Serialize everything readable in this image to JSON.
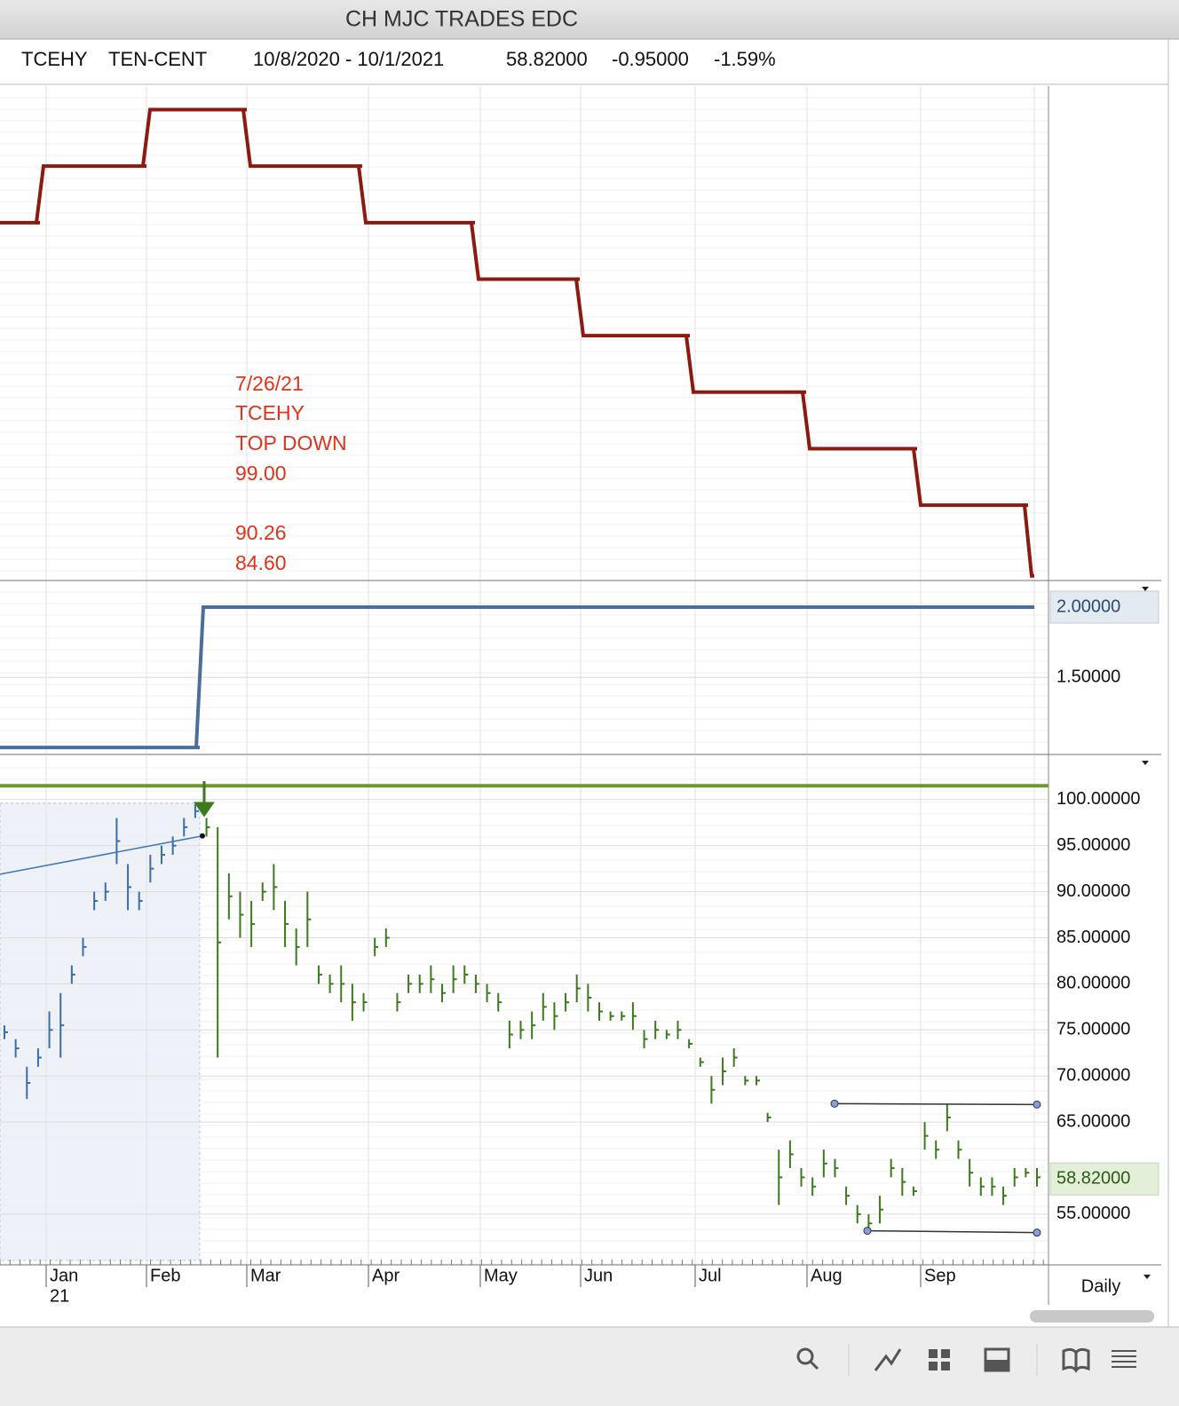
{
  "window_title": "CH MJC TRADES EDC",
  "header": {
    "symbol": "TCEHY",
    "name": "TEN-CENT",
    "range": "10/8/2020 - 10/1/2021",
    "last": "58.82000",
    "change": "-0.95000",
    "change_pct": "-1.59%"
  },
  "annotation": [
    "7/26/21",
    "TCEHY",
    "TOP DOWN",
    "99.00",
    "90.26",
    "84.60"
  ],
  "year_label": "21",
  "timeframe": "Daily",
  "chart_data": [
    {
      "type": "step",
      "color": "#8b1a10",
      "values": [
        7.6,
        8.8,
        10,
        8.8,
        7.6,
        6.4,
        5.2,
        4.0,
        2.8,
        1.6,
        0.1
      ],
      "ylim": [
        0,
        10.5
      ]
    },
    {
      "type": "step",
      "color": "#4a6f9a",
      "values": [
        1,
        2
      ],
      "ylim": [
        0.95,
        2.19
      ],
      "yticks": [
        {
          "value": 1.5,
          "label": "1.50000"
        }
      ],
      "last_value": {
        "value": 2,
        "label": "2.00000"
      }
    },
    {
      "type": "ohlc",
      "ylim": [
        49.5,
        104.7
      ],
      "categories": [
        "Jan",
        "Feb",
        "Mar",
        "Apr",
        "May",
        "Jun",
        "Jul",
        "Aug",
        "Sep"
      ],
      "yticks": [
        {
          "value": 55,
          "label": "55.00000"
        },
        {
          "value": 65,
          "label": "65.00000"
        },
        {
          "value": 70,
          "label": "70.00000"
        },
        {
          "value": 75,
          "label": "75.00000"
        },
        {
          "value": 80,
          "label": "80.00000"
        },
        {
          "value": 85,
          "label": "85.00000"
        },
        {
          "value": 90,
          "label": "90.00000"
        },
        {
          "value": 95,
          "label": "95.00000"
        },
        {
          "value": 100,
          "label": "100.00000"
        }
      ],
      "last_value": {
        "value": 58.82,
        "label": "58.82000"
      },
      "series": [
        {
          "color": "#3a6ea5",
          "low": [
            74,
            72,
            67.5,
            71,
            73,
            72,
            80,
            83,
            88,
            89,
            93,
            88,
            88,
            91,
            93,
            94,
            96,
            98
          ],
          "high": [
            75.5,
            74,
            71,
            73,
            77,
            79,
            82,
            85,
            90,
            91,
            98,
            93,
            90,
            94,
            95,
            96,
            98,
            99.5
          ]
        },
        {
          "color": "#3d7a1e",
          "low": [
            96,
            72,
            87,
            85,
            84,
            89,
            88,
            84,
            82,
            84,
            80,
            79,
            78,
            76,
            77,
            83,
            84,
            77,
            79,
            79,
            79,
            78,
            79,
            80,
            79,
            78,
            77,
            73,
            74,
            74,
            76,
            75,
            77,
            78,
            77,
            76,
            76,
            76,
            75,
            73,
            74,
            74,
            74,
            73,
            71,
            67,
            69,
            71,
            69,
            69,
            65,
            56,
            60,
            58,
            57,
            59,
            59,
            56,
            54,
            53,
            54,
            59,
            57,
            57,
            62,
            61,
            64,
            61,
            58,
            57,
            57,
            56,
            58,
            59,
            58
          ],
          "high": [
            98,
            97,
            92,
            90,
            89,
            91,
            93,
            89,
            86,
            90,
            82,
            81,
            82,
            80,
            79,
            85,
            86,
            79,
            81,
            81,
            82,
            80,
            82,
            82,
            81,
            80,
            79,
            76,
            76,
            77,
            79,
            78,
            79,
            81,
            80,
            78,
            77,
            77,
            78,
            75,
            76,
            75,
            76,
            74,
            72,
            70,
            72,
            73,
            70,
            70,
            66,
            62,
            63,
            60,
            59,
            62,
            61,
            58,
            56,
            55,
            57,
            61,
            60,
            58,
            65,
            63,
            67,
            63,
            61,
            59,
            59,
            58,
            60,
            60,
            60
          ]
        }
      ],
      "hline": {
        "value": 101.5,
        "color": "#6a9a2a"
      },
      "average": {
        "values": [
          91.9,
          96.05
        ],
        "color": "#3a78b8"
      },
      "trendlines": [
        {
          "values": [
            67,
            66.9
          ]
        },
        {
          "values": [
            53.2,
            53.0
          ]
        }
      ]
    }
  ]
}
